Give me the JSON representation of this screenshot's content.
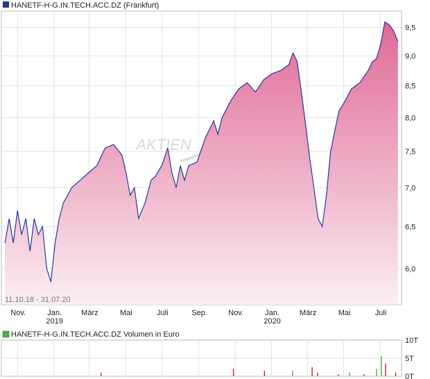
{
  "chart_data": [
    {
      "type": "area",
      "title": "HANETF-H-G.IN.TECH.ACC.DZ (Frankfurt)",
      "legend_color": "#1f3a8a",
      "line_color": "#1f3aa0",
      "fill_top_color": "#e06a96",
      "fill_bottom_color": "#fbeef3",
      "watermark": "AKTIEN",
      "date_range_label": "11.10.18 - 31.07.20",
      "x_tick_labels": [
        {
          "month": "Nov.",
          "year": ""
        },
        {
          "month": "Jan.",
          "year": "2019"
        },
        {
          "month": "März",
          "year": ""
        },
        {
          "month": "Mai",
          "year": ""
        },
        {
          "month": "Juli",
          "year": ""
        },
        {
          "month": "Sep.",
          "year": ""
        },
        {
          "month": "Nov.",
          "year": ""
        },
        {
          "month": "Jan.",
          "year": "2020"
        },
        {
          "month": "März",
          "year": ""
        },
        {
          "month": "Mai",
          "year": ""
        },
        {
          "month": "Juli",
          "year": ""
        }
      ],
      "y_tick_labels": [
        "6,0",
        "6,5",
        "7,0",
        "7,5",
        "8,0",
        "8,5",
        "9,0",
        "9,5"
      ],
      "y_ticks": [
        6.0,
        6.5,
        7.0,
        7.5,
        8.0,
        8.5,
        9.0,
        9.5
      ],
      "ylim": [
        5.6,
        9.8
      ],
      "y_scale": "log",
      "grid": true,
      "x": [
        "2018-10-11",
        "2018-10-18",
        "2018-10-25",
        "2018-11-01",
        "2018-11-08",
        "2018-11-15",
        "2018-11-22",
        "2018-11-29",
        "2018-12-06",
        "2018-12-13",
        "2018-12-20",
        "2018-12-27",
        "2019-01-03",
        "2019-01-10",
        "2019-01-17",
        "2019-01-24",
        "2019-01-31",
        "2019-02-14",
        "2019-02-28",
        "2019-03-14",
        "2019-03-28",
        "2019-04-11",
        "2019-04-25",
        "2019-05-02",
        "2019-05-09",
        "2019-05-16",
        "2019-05-23",
        "2019-06-03",
        "2019-06-13",
        "2019-06-20",
        "2019-07-01",
        "2019-07-11",
        "2019-07-18",
        "2019-07-25",
        "2019-08-01",
        "2019-08-08",
        "2019-08-15",
        "2019-08-29",
        "2019-09-12",
        "2019-09-26",
        "2019-10-03",
        "2019-10-10",
        "2019-10-24",
        "2019-11-07",
        "2019-11-21",
        "2019-12-05",
        "2019-12-19",
        "2020-01-02",
        "2020-01-16",
        "2020-01-30",
        "2020-02-06",
        "2020-02-13",
        "2020-02-20",
        "2020-02-27",
        "2020-03-05",
        "2020-03-12",
        "2020-03-19",
        "2020-03-26",
        "2020-04-02",
        "2020-04-09",
        "2020-04-16",
        "2020-04-23",
        "2020-04-30",
        "2020-05-14",
        "2020-05-28",
        "2020-06-11",
        "2020-06-18",
        "2020-06-25",
        "2020-07-02",
        "2020-07-09",
        "2020-07-16",
        "2020-07-23",
        "2020-07-31"
      ],
      "values": [
        6.3,
        6.6,
        6.3,
        6.7,
        6.4,
        6.6,
        6.2,
        6.6,
        6.4,
        6.5,
        6.0,
        5.85,
        6.3,
        6.6,
        6.8,
        6.9,
        7.0,
        7.1,
        7.2,
        7.3,
        7.55,
        7.6,
        7.45,
        7.2,
        6.9,
        7.0,
        6.6,
        6.8,
        7.1,
        7.15,
        7.3,
        7.55,
        7.2,
        7.0,
        7.3,
        7.1,
        7.3,
        7.35,
        7.7,
        7.95,
        7.75,
        8.0,
        8.25,
        8.45,
        8.55,
        8.4,
        8.6,
        8.7,
        8.75,
        8.85,
        9.05,
        8.9,
        8.4,
        7.9,
        7.4,
        7.0,
        6.6,
        6.5,
        6.9,
        7.5,
        7.8,
        8.1,
        8.2,
        8.45,
        8.55,
        8.75,
        8.9,
        8.95,
        9.2,
        9.6,
        9.55,
        9.45,
        9.25
      ]
    },
    {
      "type": "bar",
      "title": "HANETF-H-G.IN.TECH.ACC.DZ Volumen in Euro",
      "legend_color": "#4caf50",
      "y_tick_labels": [
        "0T",
        "5T",
        "10T"
      ],
      "ylim": [
        0,
        10
      ],
      "unit": "T",
      "x": [
        "2019-03-21",
        "2019-10-29",
        "2019-12-20",
        "2020-02-05",
        "2020-03-09",
        "2020-03-18",
        "2020-04-22",
        "2020-05-11",
        "2020-06-04",
        "2020-06-25",
        "2020-07-03",
        "2020-07-10",
        "2020-07-27"
      ],
      "values": [
        1.0,
        2.0,
        1.5,
        1.5,
        2.5,
        1.0,
        0.5,
        1.0,
        0.5,
        2.0,
        5.5,
        3.5,
        1.0
      ],
      "bar_colors": [
        "#cc2222",
        "#cc2222",
        "#cc2222",
        "#4caf50",
        "#cc2222",
        "#cc2222",
        "#cc2222",
        "#4caf50",
        "#cc2222",
        "#4caf50",
        "#4caf50",
        "#cc2222",
        "#cc2222"
      ]
    }
  ]
}
